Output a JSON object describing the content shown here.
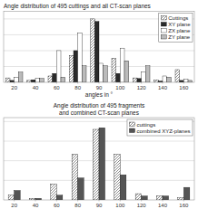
{
  "chart_data": [
    {
      "type": "bar",
      "title": "Angle distribution of 495 cuttings and all CT-scan planes",
      "x_label": "angles in °",
      "categories": [
        20,
        40,
        60,
        80,
        90,
        100,
        120,
        140,
        160
      ],
      "series": [
        {
          "name": "Cuttings",
          "color": "white",
          "values": [
            0.07,
            0.03,
            0.1,
            0.42,
            1.0,
            0.38,
            0.07,
            0.04,
            0.2
          ]
        },
        {
          "name": "XY plane",
          "color": "#2a2a2a",
          "values": [
            0.03,
            0.04,
            0.14,
            0.5,
            0.96,
            0.14,
            0.06,
            0.02,
            0.03
          ]
        },
        {
          "name": "ZX plane",
          "color": "white",
          "values": [
            0.08,
            0.06,
            0.5,
            0.78,
            0.3,
            0.54,
            0.16,
            0.1,
            0.05
          ]
        },
        {
          "name": "ZY plane",
          "color": "#bbbbbb",
          "values": [
            0.16,
            0.06,
            0.08,
            0.26,
            0.26,
            0.34,
            0.26,
            0.08,
            0.03
          ]
        }
      ],
      "ylim": [
        0,
        1.12
      ],
      "yticks": [
        0.25,
        0.5,
        0.75,
        1.0
      ],
      "grid": true,
      "legend": "upper right",
      "tick_labels": "x"
    },
    {
      "type": "bar",
      "title": "Angle distribution of 495 fragments\nand combined CT-scan planes",
      "categories": [
        20,
        40,
        60,
        80,
        90,
        100,
        120,
        140,
        160
      ],
      "series": [
        {
          "name": "cuttings",
          "color": "white",
          "values": [
            0.06,
            0.02,
            0.2,
            0.58,
            0.9,
            0.58,
            0.08,
            0.05,
            0.03
          ]
        },
        {
          "name": "combined XYZ-planes",
          "color": "#555555",
          "values": [
            0.12,
            0.02,
            0.06,
            0.28,
            0.92,
            0.32,
            0.05,
            0.05,
            0.16
          ]
        }
      ],
      "ylim": [
        0,
        1.05
      ],
      "yticks": [
        0.25,
        0.5,
        0.75,
        1.0
      ],
      "grid": true,
      "legend": "upper right",
      "tick_labels": "x"
    }
  ]
}
